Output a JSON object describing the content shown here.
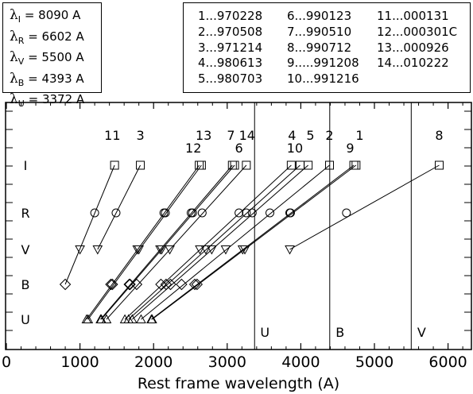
{
  "wavelengths": [
    {
      "sym": "λ",
      "band": "I",
      "value": "= 8090 A"
    },
    {
      "sym": "λ",
      "band": "R",
      "value": "= 6602 A"
    },
    {
      "sym": "λ",
      "band": "V",
      "value": "= 5500 A"
    },
    {
      "sym": "λ",
      "band": "B",
      "value": "= 4393 A"
    },
    {
      "sym": "λ",
      "band": "U",
      "value": "= 3372 A"
    }
  ],
  "dates": [
    "1...970228",
    "2...970508",
    "3...971214",
    "4...980613",
    "5...980703",
    "6...990123",
    "7...990510",
    "8...990712",
    "9.....991208",
    "10...991216",
    "11...000131",
    "12...000301C",
    "13...000926",
    "14...010222"
  ],
  "chart_data": {
    "type": "line",
    "xlabel": "Rest frame wavelength    (A)",
    "ylabel": "",
    "xlim": [
      0,
      6400
    ],
    "xticks": [
      0,
      1000,
      2000,
      3000,
      4000,
      5000,
      6000
    ],
    "yticks": [
      "I",
      "R",
      "V",
      "B",
      "U"
    ],
    "markers": {
      "I": "square",
      "R": "circle",
      "V": "triangle-down",
      "B": "diamond",
      "U": "triangle-up"
    },
    "observed_wavelengths": {
      "I": 8090,
      "R": 6602,
      "V": 5500,
      "B": 4393,
      "U": 3372
    },
    "series": [
      {
        "name": "1",
        "label_x": 4800,
        "label_row": "top",
        "points": {
          "I": 4750,
          "R": 3860,
          "V": 3240,
          "B": 2590,
          "U": 1980
        }
      },
      {
        "name": "2",
        "label_x": 4390,
        "label_row": "top",
        "points": {
          "I": 4390,
          "R": 3580,
          "V": 2980,
          "B": 2380,
          "U": 1830
        }
      },
      {
        "name": "3",
        "label_x": 1820,
        "label_row": "top",
        "points": {
          "I": 1820,
          "R": 1490,
          "V": 1240
        }
      },
      {
        "name": "4",
        "label_x": 3880,
        "label_row": "top",
        "points": {
          "I": 3870,
          "R": 3160,
          "V": 2630,
          "B": 2100,
          "U": 1610
        }
      },
      {
        "name": "5",
        "label_x": 4130,
        "label_row": "top",
        "points": {
          "I": 4100,
          "R": 3340,
          "V": 2790,
          "B": 2230,
          "U": 1710
        }
      },
      {
        "name": "6",
        "label_x": 3160,
        "label_row": "lower",
        "points": {
          "I": 3100,
          "R": 2530,
          "V": 2110,
          "B": 1680,
          "U": 1290
        }
      },
      {
        "name": "7",
        "label_x": 3050,
        "label_row": "top",
        "points": {
          "I": 3070,
          "R": 2510,
          "V": 2090,
          "B": 1670,
          "U": 1280
        }
      },
      {
        "name": "8",
        "label_x": 5880,
        "label_row": "top",
        "points": {
          "I": 5880,
          "R": 4620,
          "V": 3850
        }
      },
      {
        "name": "9",
        "label_x": 4670,
        "label_row": "lower",
        "points": {
          "I": 4720,
          "R": 3850,
          "V": 3210,
          "B": 2560,
          "U": 1970
        }
      },
      {
        "name": "10",
        "label_x": 3920,
        "label_row": "lower",
        "points": {
          "I": 3990,
          "R": 3260,
          "V": 2710,
          "B": 2170,
          "U": 1660
        }
      },
      {
        "name": "11",
        "label_x": 1440,
        "label_row": "top",
        "points": {
          "I": 1470,
          "R": 1200,
          "V": 1000,
          "B": 800
        }
      },
      {
        "name": "12",
        "label_x": 2540,
        "label_row": "lower",
        "points": {
          "I": 2620,
          "R": 2140,
          "V": 1780,
          "B": 1420,
          "U": 1090
        }
      },
      {
        "name": "13",
        "label_x": 2680,
        "label_row": "top",
        "points": {
          "I": 2650,
          "R": 2160,
          "V": 1800,
          "B": 1440,
          "U": 1110
        }
      },
      {
        "name": "14",
        "label_x": 3270,
        "label_row": "top",
        "points": {
          "I": 3260,
          "R": 2660,
          "V": 2220,
          "B": 1770,
          "U": 1360
        }
      }
    ],
    "vertical_lines": [
      {
        "label": "U",
        "x": 3372
      },
      {
        "label": "B",
        "x": 4393
      },
      {
        "label": "V",
        "x": 5500
      }
    ]
  }
}
